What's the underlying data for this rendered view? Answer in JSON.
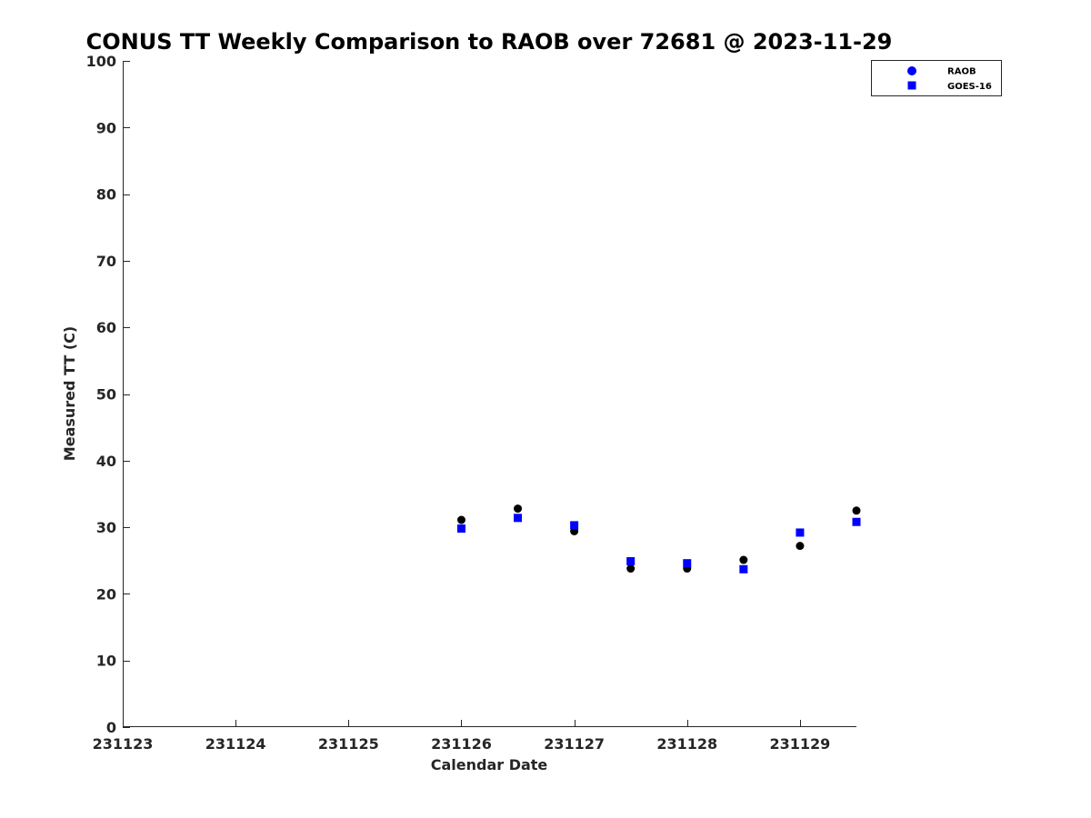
{
  "chart_data": {
    "type": "scatter",
    "title": "CONUS TT Weekly Comparison to RAOB over 72681 @ 2023-11-29",
    "xlabel": "Calendar Date",
    "ylabel": "Measured TT (C)",
    "xlim": [
      0,
      6.5
    ],
    "ylim": [
      0,
      100
    ],
    "x_ticks": [
      {
        "value": 0,
        "label": "231123"
      },
      {
        "value": 1,
        "label": "231124"
      },
      {
        "value": 2,
        "label": "231125"
      },
      {
        "value": 3,
        "label": "231126"
      },
      {
        "value": 4,
        "label": "231127"
      },
      {
        "value": 5,
        "label": "231128"
      },
      {
        "value": 6,
        "label": "231129"
      }
    ],
    "y_ticks": [
      0,
      10,
      20,
      30,
      40,
      50,
      60,
      70,
      80,
      90,
      100
    ],
    "legend_position": "top-right",
    "series": [
      {
        "name": "RAOB",
        "marker": "circle",
        "legend_color": "#0000ff",
        "color": "#000000",
        "x": [
          3.0,
          3.5,
          4.0,
          4.5,
          5.0,
          5.5,
          6.0,
          6.5
        ],
        "y": [
          31.1,
          32.8,
          29.4,
          23.8,
          23.8,
          25.1,
          27.2,
          32.5
        ]
      },
      {
        "name": "GOES-16",
        "marker": "square",
        "legend_color": "#0000ff",
        "color": "#0000ff",
        "x": [
          3.0,
          3.5,
          4.0,
          4.5,
          5.0,
          5.5,
          6.0,
          6.5
        ],
        "y": [
          29.8,
          31.4,
          30.3,
          24.9,
          24.6,
          23.7,
          29.2,
          30.8
        ]
      }
    ]
  }
}
